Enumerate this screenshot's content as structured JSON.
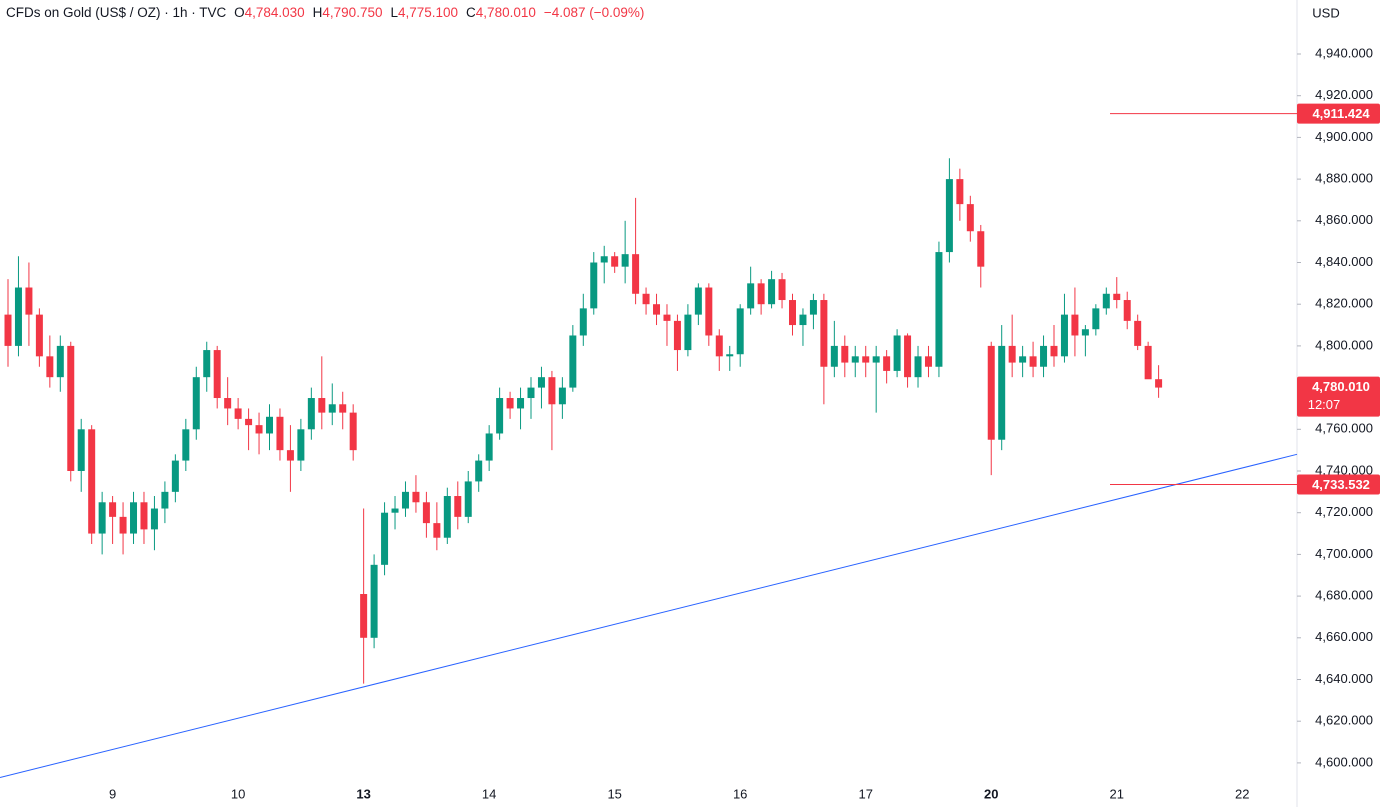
{
  "chart_data": {
    "type": "candlestick",
    "title": "CFDs on Gold (US$ / OZ) · 1h · TVC",
    "ohlc_header": [
      {
        "key": "O",
        "value": "4,784.030"
      },
      {
        "key": "H",
        "value": "4,790.750"
      },
      {
        "key": "L",
        "value": "4,775.100"
      },
      {
        "key": "C",
        "value": "4,780.010"
      }
    ],
    "change": "−4.087 (−0.09%)",
    "currency": "USD",
    "up_color": "#089981",
    "down_color": "#f23645",
    "categories": [
      null,
      null,
      null,
      null,
      null,
      null,
      null,
      null,
      null,
      null,
      "9",
      null,
      null,
      null,
      null,
      null,
      null,
      null,
      null,
      null,
      null,
      null,
      "10",
      null,
      null,
      null,
      null,
      null,
      null,
      null,
      null,
      null,
      null,
      null,
      "13",
      null,
      null,
      null,
      null,
      null,
      null,
      null,
      null,
      null,
      null,
      null,
      "14",
      null,
      null,
      null,
      null,
      null,
      null,
      null,
      null,
      null,
      null,
      null,
      "15",
      null,
      null,
      null,
      null,
      null,
      null,
      null,
      null,
      null,
      null,
      null,
      "16",
      null,
      null,
      null,
      null,
      null,
      null,
      null,
      null,
      null,
      null,
      null,
      "17",
      null,
      null,
      null,
      null,
      null,
      null,
      null,
      null,
      null,
      null,
      null,
      "20",
      null,
      null,
      null,
      null,
      null,
      null,
      null,
      null,
      null,
      null,
      null,
      "21",
      null,
      null,
      null,
      null,
      null,
      null,
      null,
      null,
      null,
      null,
      null,
      "22"
    ],
    "week_start_ticks": [
      34,
      94
    ],
    "open": [
      4815,
      4800,
      4828,
      4815,
      4795,
      4785,
      4800,
      4740,
      4760,
      4710,
      4725,
      4718,
      4710,
      4725,
      4712,
      4722,
      4730,
      4745,
      4760,
      4785,
      4798,
      4775,
      4770,
      4765,
      4762,
      4758,
      4766,
      4750,
      4745,
      4760,
      4775,
      4768,
      4772,
      4768,
      4681,
      4660,
      4695,
      4720,
      4722,
      4730,
      4725,
      4715,
      4708,
      4728,
      4718,
      4735,
      4745,
      4758,
      4775,
      4770,
      4775,
      4780,
      4785,
      4772,
      4780,
      4805,
      4818,
      4840,
      4843,
      4838,
      4844,
      4825,
      4820,
      4815,
      4812,
      4798,
      4815,
      4828,
      4805,
      4795,
      4796,
      4818,
      4830,
      4820,
      4832,
      4822,
      4810,
      4815,
      4822,
      4790,
      4800,
      4792,
      4795,
      4792,
      4795,
      4788,
      4805,
      4785,
      4795,
      4790,
      4845,
      4880,
      4868,
      4855,
      4800,
      4755,
      4800,
      4792,
      4795,
      4790,
      4800,
      4795,
      4815,
      4805,
      4808,
      4818,
      4825,
      4822,
      4812,
      4800,
      4784.03,
      null,
      null,
      null,
      null,
      null,
      null,
      null,
      null
    ],
    "high": [
      4832,
      4843,
      4840,
      4818,
      4805,
      4805,
      4802,
      4765,
      4762,
      4730,
      4728,
      4725,
      4730,
      4730,
      4728,
      4735,
      4748,
      4765,
      4790,
      4802,
      4800,
      4785,
      4775,
      4770,
      4768,
      4772,
      4770,
      4762,
      4765,
      4780,
      4795,
      4782,
      4778,
      4772,
      4722,
      4700,
      4725,
      4728,
      4735,
      4738,
      4730,
      4725,
      4732,
      4735,
      4740,
      4748,
      4762,
      4780,
      4778,
      4780,
      4785,
      4790,
      4788,
      4785,
      4810,
      4825,
      4845,
      4848,
      4845,
      4860,
      4871,
      4828,
      4825,
      4820,
      4815,
      4820,
      4830,
      4830,
      4808,
      4800,
      4820,
      4838,
      4832,
      4836,
      4835,
      4825,
      4818,
      4825,
      4825,
      4812,
      4805,
      4800,
      4800,
      4800,
      4798,
      4808,
      4806,
      4800,
      4800,
      4850,
      4890,
      4885,
      4872,
      4858,
      4802,
      4810,
      4815,
      4800,
      4802,
      4805,
      4810,
      4825,
      4828,
      4810,
      4820,
      4828,
      4833,
      4826,
      4815,
      4802,
      4790.75,
      null,
      null,
      null,
      null,
      null,
      null,
      null,
      null
    ],
    "low": [
      4790,
      4795,
      4800,
      4790,
      4780,
      4778,
      4735,
      4730,
      4705,
      4700,
      4705,
      4700,
      4705,
      4705,
      4702,
      4715,
      4725,
      4740,
      4755,
      4778,
      4770,
      4762,
      4760,
      4750,
      4748,
      4750,
      4745,
      4730,
      4740,
      4755,
      4760,
      4762,
      4760,
      4745,
      4638,
      4655,
      4690,
      4712,
      4718,
      4720,
      4708,
      4702,
      4705,
      4712,
      4715,
      4730,
      4740,
      4755,
      4765,
      4760,
      4765,
      4770,
      4750,
      4765,
      4778,
      4800,
      4815,
      4830,
      4835,
      4830,
      4820,
      4815,
      4810,
      4800,
      4788,
      4795,
      4810,
      4800,
      4788,
      4788,
      4790,
      4815,
      4815,
      4818,
      4818,
      4805,
      4800,
      4808,
      4772,
      4785,
      4785,
      4785,
      4785,
      4768,
      4782,
      4785,
      4780,
      4780,
      4785,
      4785,
      4840,
      4860,
      4850,
      4828,
      4738,
      4750,
      4785,
      4785,
      4785,
      4785,
      4790,
      4792,
      4795,
      4795,
      4805,
      4815,
      4818,
      4808,
      4798,
      4785,
      4775.1,
      null,
      null,
      null,
      null,
      null,
      null,
      null,
      null
    ],
    "close": [
      4800,
      4828,
      4815,
      4795,
      4785,
      4800,
      4740,
      4760,
      4710,
      4725,
      4718,
      4710,
      4725,
      4712,
      4722,
      4730,
      4745,
      4760,
      4785,
      4798,
      4775,
      4770,
      4765,
      4762,
      4758,
      4766,
      4750,
      4745,
      4760,
      4775,
      4768,
      4772,
      4768,
      4750,
      4660,
      4695,
      4720,
      4722,
      4730,
      4725,
      4715,
      4708,
      4728,
      4718,
      4735,
      4745,
      4758,
      4775,
      4770,
      4775,
      4780,
      4785,
      4772,
      4780,
      4805,
      4818,
      4840,
      4843,
      4838,
      4844,
      4825,
      4820,
      4815,
      4812,
      4798,
      4815,
      4828,
      4805,
      4795,
      4796,
      4818,
      4830,
      4820,
      4832,
      4822,
      4810,
      4815,
      4822,
      4790,
      4800,
      4792,
      4795,
      4792,
      4795,
      4788,
      4805,
      4785,
      4795,
      4790,
      4845,
      4880,
      4868,
      4855,
      4838,
      4755,
      4800,
      4792,
      4795,
      4790,
      4800,
      4795,
      4815,
      4805,
      4808,
      4818,
      4825,
      4822,
      4812,
      4800,
      4784,
      4780.01,
      null,
      null,
      null,
      null,
      null,
      null,
      null,
      null
    ],
    "ylim": [
      4589.4,
      4965.9
    ],
    "yticks": [
      {
        "value": 4600,
        "label": "4,600.000"
      },
      {
        "value": 4620,
        "label": "4,620.000"
      },
      {
        "value": 4640,
        "label": "4,640.000"
      },
      {
        "value": 4660,
        "label": "4,660.000"
      },
      {
        "value": 4680,
        "label": "4,680.000"
      },
      {
        "value": 4700,
        "label": "4,700.000"
      },
      {
        "value": 4720,
        "label": "4,720.000"
      },
      {
        "value": 4740,
        "label": "4,740.000"
      },
      {
        "value": 4760,
        "label": "4,760.000"
      },
      {
        "value": 4780,
        "label": "4,780.000"
      },
      {
        "value": 4800,
        "label": "4,800.000"
      },
      {
        "value": 4820,
        "label": "4,820.000"
      },
      {
        "value": 4840,
        "label": "4,840.000"
      },
      {
        "value": 4860,
        "label": "4,860.000"
      },
      {
        "value": 4880,
        "label": "4,880.000"
      },
      {
        "value": 4900,
        "label": "4,900.000"
      },
      {
        "value": 4920,
        "label": "4,920.000"
      },
      {
        "value": 4940,
        "label": "4,940.000"
      }
    ],
    "price_lines": [
      {
        "value": 4911.424,
        "label": "4,911.424",
        "color": "#f23645"
      },
      {
        "value": 4733.532,
        "label": "4,733.532",
        "color": "#f23645"
      }
    ],
    "last_price": {
      "value": 4780.01,
      "label": "4,780.010",
      "countdown": "12:07",
      "color": "#f23645"
    },
    "trendline": {
      "y": [
        4593,
        4748
      ],
      "color": "#2962ff"
    }
  }
}
